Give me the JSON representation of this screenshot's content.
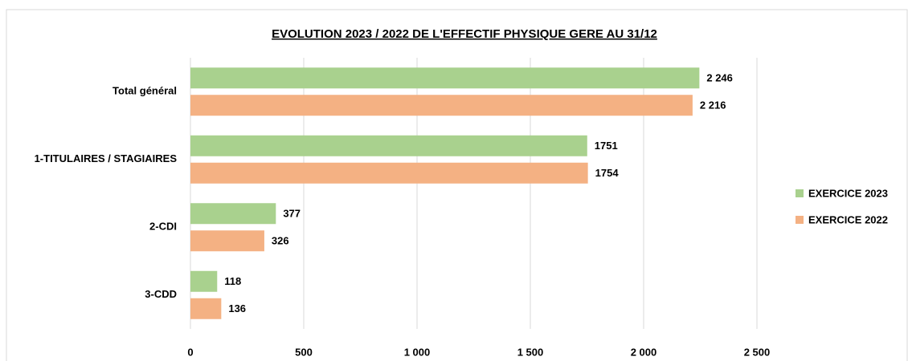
{
  "chart_data": {
    "type": "bar",
    "orientation": "horizontal",
    "title": "EVOLUTION 2023 / 2022 DE L'EFFECTIF PHYSIQUE GERE AU 31/12",
    "categories": [
      "Total général",
      "1-TITULAIRES / STAGIAIRES",
      "2-CDI",
      "3-CDD"
    ],
    "series": [
      {
        "name": "EXERCICE 2023",
        "color": "#a9d18e",
        "values": [
          2246,
          1751,
          377,
          118
        ],
        "value_labels": [
          "2 246",
          "1751",
          "377",
          "118"
        ]
      },
      {
        "name": "EXERCICE 2022",
        "color": "#f4b183",
        "values": [
          2216,
          1754,
          326,
          136
        ],
        "value_labels": [
          "2 216",
          "1754",
          "326",
          "136"
        ]
      }
    ],
    "xlim": [
      0,
      2500
    ],
    "xticks": [
      0,
      500,
      {
        "value": 1000,
        "label": "1 000"
      },
      {
        "value": 1500,
        "label": "1 500"
      },
      {
        "value": 2000,
        "label": "2 000"
      },
      {
        "value": 2500,
        "label": "2 500"
      }
    ],
    "grid": true,
    "legend": "right"
  }
}
